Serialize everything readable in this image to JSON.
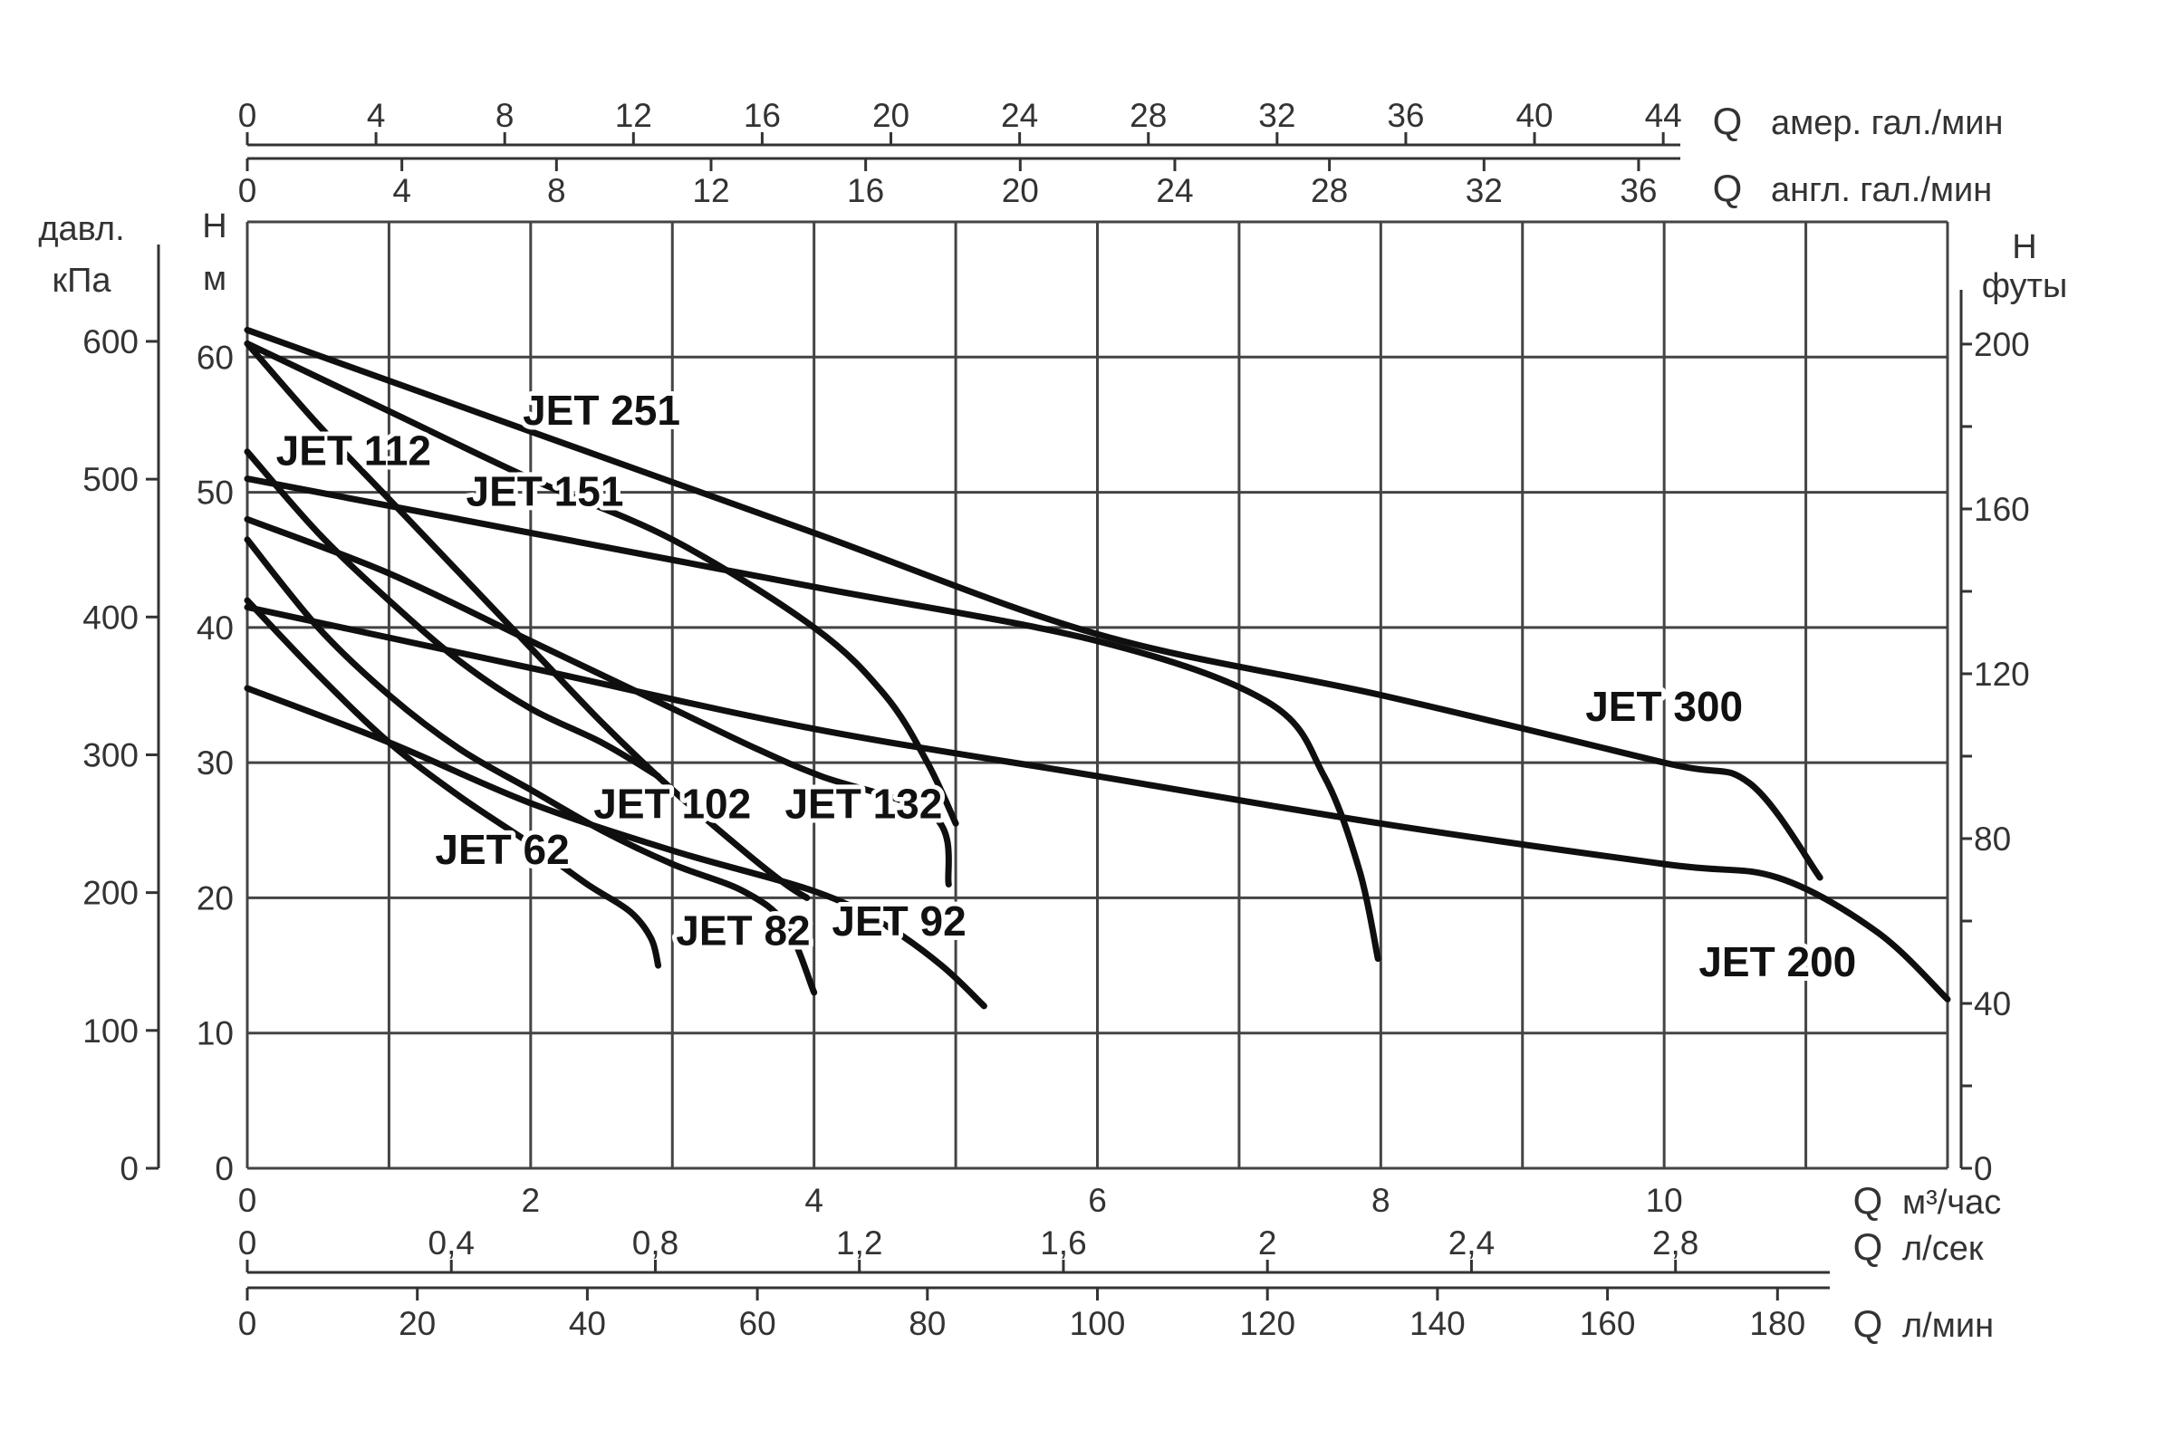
{
  "chart_data": {
    "type": "line",
    "title": "",
    "axes": {
      "x_primary": {
        "unit_letter": "Q",
        "unit": "м³/час",
        "range": [
          0,
          12
        ],
        "ticks": [
          "0",
          "2",
          "4",
          "6",
          "8",
          "10"
        ]
      },
      "x_ls": {
        "unit_letter": "Q",
        "unit": "л/сек",
        "ticks": [
          "0",
          "0,4",
          "0,8",
          "1,2",
          "1,6",
          "2",
          "2,4",
          "2,8"
        ]
      },
      "x_lmin": {
        "unit_letter": "Q",
        "unit": "л/мин",
        "ticks": [
          "0",
          "20",
          "40",
          "60",
          "80",
          "100",
          "120",
          "140",
          "160",
          "180"
        ]
      },
      "x_us_gal": {
        "unit_letter": "Q",
        "unit": "амер. гал./мин",
        "ticks": [
          "0",
          "4",
          "8",
          "12",
          "16",
          "20",
          "24",
          "28",
          "32",
          "36",
          "40",
          "44"
        ]
      },
      "x_uk_gal": {
        "unit_letter": "Q",
        "unit": "англ. гал./мин",
        "ticks": [
          "0",
          "4",
          "8",
          "12",
          "16",
          "20",
          "24",
          "28",
          "32",
          "36"
        ]
      },
      "y_primary": {
        "label_top": "H",
        "label_bottom": "м",
        "range": [
          0,
          70
        ],
        "ticks": [
          "0",
          "10",
          "20",
          "30",
          "40",
          "50",
          "60"
        ]
      },
      "y_kpa": {
        "label_top": "давл.",
        "label_bottom": "кПа",
        "ticks": [
          "0",
          "100",
          "200",
          "300",
          "400",
          "500",
          "600"
        ]
      },
      "y_ft": {
        "label_top": "H",
        "label_bottom": "футы",
        "ticks": [
          "0",
          "40",
          "80",
          "120",
          "160",
          "200"
        ]
      }
    },
    "grid": true,
    "series": [
      {
        "name": "JET 62",
        "x": [
          0,
          0.5,
          1,
          1.5,
          2,
          2.4,
          2.7,
          2.85,
          2.9
        ],
        "y": [
          42,
          36.5,
          31.5,
          27.5,
          24,
          21,
          19,
          17,
          15
        ]
      },
      {
        "name": "JET 82",
        "x": [
          0,
          0.5,
          1,
          1.5,
          2,
          2.5,
          3,
          3.5,
          3.8,
          4.0
        ],
        "y": [
          46.5,
          40,
          35,
          31,
          28,
          25,
          22.5,
          20.5,
          18,
          13
        ]
      },
      {
        "name": "JET 92",
        "x": [
          0,
          1,
          2,
          3,
          4,
          4.5,
          4.9,
          5.2
        ],
        "y": [
          35.5,
          31.5,
          27,
          23.5,
          20.5,
          18,
          15,
          12
        ]
      },
      {
        "name": "JET 102",
        "x": [
          0,
          0.5,
          1,
          1.5,
          2,
          2.5,
          2.9
        ],
        "y": [
          53,
          47,
          42,
          37.5,
          34,
          31.5,
          29
        ]
      },
      {
        "name": "JET 112",
        "x": [
          0,
          0.5,
          1,
          1.5,
          2,
          2.5,
          3,
          3.5,
          3.8,
          3.95
        ],
        "y": [
          61,
          55,
          49.5,
          44,
          38.5,
          33,
          28,
          23.5,
          21,
          20
        ]
      },
      {
        "name": "JET 132",
        "x": [
          0,
          1,
          2,
          3,
          3.6,
          4.05,
          4.85,
          4.95
        ],
        "y": [
          48,
          44,
          39,
          34,
          31,
          29,
          26,
          21
        ]
      },
      {
        "name": "JET 151",
        "x": [
          0,
          1,
          2,
          3,
          4,
          4.5,
          4.8,
          5.0
        ],
        "y": [
          61,
          56,
          51,
          46.5,
          40,
          35,
          30,
          25.5
        ]
      },
      {
        "name": "JET 200",
        "x": [
          0,
          2,
          4,
          6,
          8,
          10,
          10.8,
          11.5,
          12.0
        ],
        "y": [
          41.5,
          37,
          32.5,
          29,
          25.5,
          22.5,
          21.5,
          17.5,
          12.5
        ]
      },
      {
        "name": "JET 251",
        "x": [
          0,
          2,
          4,
          6,
          7.2,
          7.6,
          7.85,
          7.98
        ],
        "y": [
          51,
          47,
          43,
          39,
          34.5,
          29,
          22,
          15.5
        ]
      },
      {
        "name": "JET 300",
        "x": [
          0,
          2,
          4,
          6,
          8,
          10,
          10.6,
          11.1
        ],
        "y": [
          62,
          54.5,
          47,
          39.5,
          35,
          30,
          28.5,
          21.5
        ]
      }
    ],
    "label_positions_data": [
      {
        "series": "JET 62",
        "x": 1.8,
        "y": 22.5
      },
      {
        "series": "JET 82",
        "x": 3.5,
        "y": 16.5
      },
      {
        "series": "JET 92",
        "x": 4.6,
        "y": 17.2
      },
      {
        "series": "JET 102",
        "x": 3.0,
        "y": 25.9
      },
      {
        "series": "JET 112",
        "x": 0.75,
        "y": 52.0
      },
      {
        "series": "JET 132",
        "x": 4.35,
        "y": 25.9
      },
      {
        "series": "JET 151",
        "x": 2.1,
        "y": 49.0
      },
      {
        "series": "JET 200",
        "x": 10.8,
        "y": 14.2
      },
      {
        "series": "JET 251",
        "x": 2.5,
        "y": 55.0
      },
      {
        "series": "JET 300",
        "x": 10.0,
        "y": 33.1
      }
    ]
  }
}
